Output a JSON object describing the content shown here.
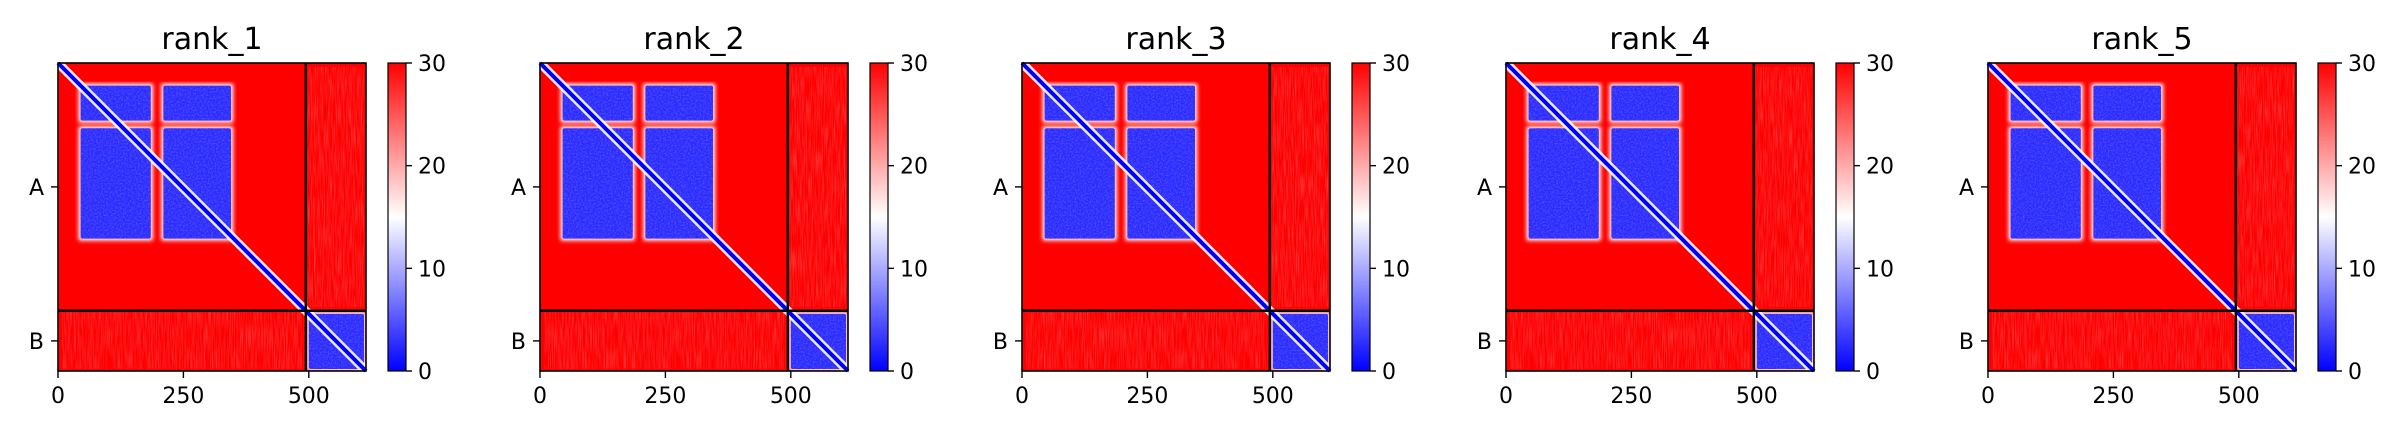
{
  "chart_data": [
    {
      "type": "heatmap",
      "title": "rank_1",
      "chains": [
        "A",
        "B"
      ],
      "chain_boundary": 494,
      "x_ticks": [
        0,
        250,
        500
      ],
      "xlim": [
        0,
        614
      ],
      "colorbar": {
        "ticks": [
          0,
          10,
          20,
          30
        ],
        "range": [
          0,
          30
        ],
        "colors": [
          "#0000ff",
          "#ffffff",
          "#ff0000"
        ]
      }
    },
    {
      "type": "heatmap",
      "title": "rank_2",
      "chains": [
        "A",
        "B"
      ],
      "chain_boundary": 494,
      "x_ticks": [
        0,
        250,
        500
      ],
      "xlim": [
        0,
        614
      ],
      "colorbar": {
        "ticks": [
          0,
          10,
          20,
          30
        ],
        "range": [
          0,
          30
        ],
        "colors": [
          "#0000ff",
          "#ffffff",
          "#ff0000"
        ]
      }
    },
    {
      "type": "heatmap",
      "title": "rank_3",
      "chains": [
        "A",
        "B"
      ],
      "chain_boundary": 494,
      "x_ticks": [
        0,
        250,
        500
      ],
      "xlim": [
        0,
        614
      ],
      "colorbar": {
        "ticks": [
          0,
          10,
          20,
          30
        ],
        "range": [
          0,
          30
        ],
        "colors": [
          "#0000ff",
          "#ffffff",
          "#ff0000"
        ]
      }
    },
    {
      "type": "heatmap",
      "title": "rank_4",
      "chains": [
        "A",
        "B"
      ],
      "chain_boundary": 494,
      "x_ticks": [
        0,
        250,
        500
      ],
      "xlim": [
        0,
        614
      ],
      "colorbar": {
        "ticks": [
          0,
          10,
          20,
          30
        ],
        "range": [
          0,
          30
        ],
        "colors": [
          "#0000ff",
          "#ffffff",
          "#ff0000"
        ]
      }
    },
    {
      "type": "heatmap",
      "title": "rank_5",
      "chains": [
        "A",
        "B"
      ],
      "chain_boundary": 494,
      "x_ticks": [
        0,
        250,
        500
      ],
      "xlim": [
        0,
        614
      ],
      "colorbar": {
        "ticks": [
          0,
          10,
          20,
          30
        ],
        "range": [
          0,
          30
        ],
        "colors": [
          "#0000ff",
          "#ffffff",
          "#ff0000"
        ]
      }
    }
  ]
}
